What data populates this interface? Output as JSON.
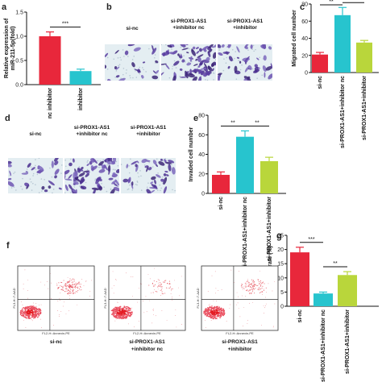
{
  "panels": {
    "a": "a",
    "b": "b",
    "c": "c",
    "d": "d",
    "e": "e",
    "f": "f",
    "g": "g"
  },
  "image_panels": {
    "b_headers": [
      "si-nc",
      "si-PROX1-AS1\n+inhibitor nc",
      "si-PROX1-AS1\n+inhibitor"
    ],
    "d_headers": [
      "si-nc",
      "si-PROX1-AS1\n+inhibitor nc",
      "si-PROX1-AS1\n+inhibitor"
    ],
    "f_footers": [
      "si-nc",
      "si-PROX1-AS1\n+inhibitor nc",
      "si-PROX1-AS1\n+inhibitor"
    ],
    "flow_xlabel": "FL2-H::Annexin-PE",
    "flow_ylabel": "FL3-H::7-AAD"
  },
  "chart_data": [
    {
      "panel": "a",
      "type": "bar",
      "categories": [
        "nc inhibitor",
        "inhibitor"
      ],
      "values": [
        1.0,
        0.28
      ],
      "errors": [
        0.09,
        0.04
      ],
      "colors": [
        "#e8273b",
        "#27c4ce"
      ],
      "ylabel": "Relative expression of\nmiR-211-5p(fold)",
      "ylim": [
        0,
        1.5
      ],
      "yticks": [
        "0.0",
        "0.5",
        "1.0",
        "1.5"
      ],
      "significance": [
        {
          "from": 0,
          "to": 1,
          "label": "***"
        }
      ]
    },
    {
      "panel": "c",
      "type": "bar",
      "categories": [
        "si-nc",
        "si-PROX1-AS1+inhibitor nc",
        "si-PROX1-AS1+inhibitor"
      ],
      "values": [
        21,
        67,
        35
      ],
      "errors": [
        2.5,
        9,
        2.5
      ],
      "colors": [
        "#e8273b",
        "#27c4ce",
        "#b9d63b"
      ],
      "ylabel": "Migrated cell number",
      "ylim": [
        0,
        80
      ],
      "yticks": [
        "0",
        "20",
        "40",
        "60",
        "80"
      ],
      "significance": [
        {
          "from": 0,
          "to": 1,
          "label": "**"
        },
        {
          "from": 1,
          "to": 2,
          "label": "**"
        }
      ]
    },
    {
      "panel": "e",
      "type": "bar",
      "categories": [
        "si-nc",
        "si-PROX1-AS1+inhibitor nc",
        "si-PROX1-AS1+inhibitor"
      ],
      "values": [
        19,
        58,
        33
      ],
      "errors": [
        3,
        6,
        4
      ],
      "colors": [
        "#e8273b",
        "#27c4ce",
        "#b9d63b"
      ],
      "ylabel": "Invaded cell number",
      "ylim": [
        0,
        80
      ],
      "yticks": [
        "0",
        "20",
        "40",
        "60",
        "80"
      ],
      "significance": [
        {
          "from": 0,
          "to": 1,
          "label": "**"
        },
        {
          "from": 1,
          "to": 2,
          "label": "**"
        }
      ]
    },
    {
      "panel": "g",
      "type": "bar",
      "categories": [
        "si-nc",
        "si-PROX1-AS1+inhibitor nc",
        "si-PROX1-AS1+inhibitor"
      ],
      "values": [
        19,
        4.5,
        11
      ],
      "errors": [
        1.8,
        0.5,
        1.2
      ],
      "colors": [
        "#e8273b",
        "#27c4ce",
        "#b9d63b"
      ],
      "ylabel": "Apoptosis rate (%)",
      "ylim": [
        0,
        25
      ],
      "yticks": [
        "0",
        "5",
        "10",
        "15",
        "20",
        "25"
      ],
      "significance": [
        {
          "from": 0,
          "to": 1,
          "label": "***"
        },
        {
          "from": 1,
          "to": 2,
          "label": "**"
        }
      ]
    }
  ]
}
